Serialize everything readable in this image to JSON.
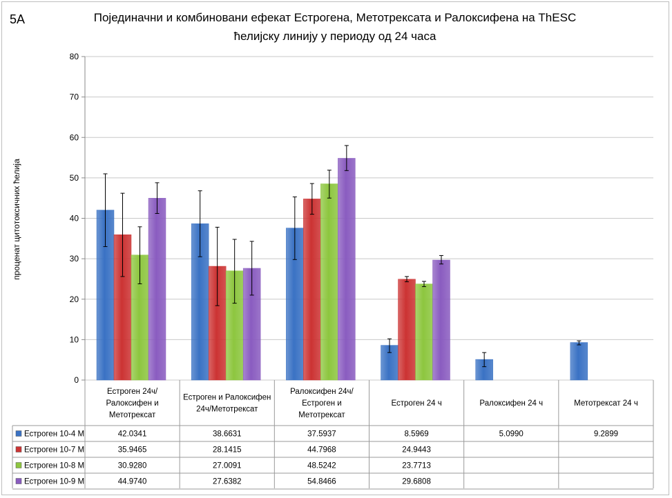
{
  "figure_label": "5А",
  "chart_data": {
    "type": "bar",
    "title": "Појединачни и комбиновани ефекат Естрогена, Метотрексата и Ралоксифена на ThESC ћелијску линију у периоду од 24 часа",
    "title_lines": [
      "Појединачни и комбиновани ефекат Естрогена, Метотрексата и Ралоксифена на ThESC",
      "ћелијску линију у периоду од 24 часа"
    ],
    "xlabel": "",
    "ylabel": "проценат цитотоксичних ћелија",
    "ylim": [
      0,
      80
    ],
    "yticks": [
      "0",
      "10",
      "20",
      "30",
      "40",
      "50",
      "60",
      "70",
      "80"
    ],
    "grid": true,
    "legend_placement": "data-table",
    "categories": [
      [
        "Естроген 24ч/",
        "Ралоксифен и",
        "Метотрексат"
      ],
      [
        "Естроген и Ралоксифен",
        "24ч/Метотрексат"
      ],
      [
        "Ралоксифен 24ч/",
        "Естроген и",
        "Метотрексат"
      ],
      [
        "Естроген 24 ч"
      ],
      [
        "Ралоксифен 24 ч"
      ],
      [
        "Метотрексат 24 ч"
      ]
    ],
    "series": [
      {
        "name": "Естроген 10-4 М",
        "color": "#3a72c4",
        "values": [
          42.0341,
          38.6631,
          37.5937,
          8.5969,
          5.099,
          9.2899
        ],
        "labels": [
          "42.0341",
          "38.6631",
          "37.5937",
          "8.5969",
          "5.0990",
          "9.2899"
        ],
        "error_low": [
          33,
          30.5,
          29.8,
          6.8,
          3.3,
          8.7
        ],
        "error_high": [
          51,
          46.8,
          45.3,
          10.2,
          6.8,
          9.7
        ]
      },
      {
        "name": "Естроген 10-7 М",
        "color": "#cc3333",
        "values": [
          35.9465,
          28.1415,
          44.7968,
          24.9443,
          null,
          null
        ],
        "labels": [
          "35.9465",
          "28.1415",
          "44.7968",
          "24.9443",
          "",
          ""
        ],
        "error_low": [
          25.6,
          18.4,
          41.0,
          24.3,
          null,
          null
        ],
        "error_high": [
          46.2,
          37.8,
          48.6,
          25.6,
          null,
          null
        ]
      },
      {
        "name": "Естроген 10-8 М",
        "color": "#8dc63f",
        "values": [
          30.928,
          27.0091,
          48.5242,
          23.7713,
          null,
          null
        ],
        "labels": [
          "30.9280",
          "27.0091",
          "48.5242",
          "23.7713",
          "",
          ""
        ],
        "error_low": [
          23.8,
          19.0,
          45.0,
          23.1,
          null,
          null
        ],
        "error_high": [
          37.9,
          34.8,
          51.9,
          24.4,
          null,
          null
        ]
      },
      {
        "name": "Естроген 10-9 М",
        "color": "#8a5cc0",
        "values": [
          44.974,
          27.6382,
          54.8466,
          29.6808,
          null,
          null
        ],
        "labels": [
          "44.9740",
          "27.6382",
          "54.8466",
          "29.6808",
          "",
          ""
        ],
        "error_low": [
          41.2,
          21.0,
          51.8,
          28.7,
          null,
          null
        ],
        "error_high": [
          48.8,
          34.3,
          58.0,
          30.8,
          null,
          null
        ]
      }
    ]
  }
}
